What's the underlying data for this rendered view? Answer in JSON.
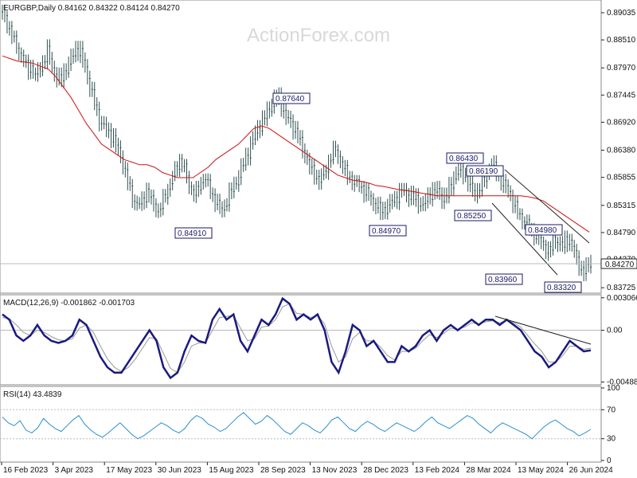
{
  "header": {
    "price_title": "EURGBP,Daily  0.84162 0.84322 0.84124 0.84270",
    "watermark": "ActionForex.com",
    "macd_title": "MACD(12,26,9) -0.001862 -0.001703",
    "rsi_title": "RSI(14) 43.4839"
  },
  "colors": {
    "candles": "#2f4f4f",
    "ma": "#cc1111",
    "macd_main": "#1a1a80",
    "macd_signal": "#999999",
    "rsi": "#2a8fd0",
    "trendline": "#222222",
    "label_border": "#1a1a66"
  },
  "chart_data": [
    {
      "type": "line",
      "title": "EURGBP,Daily",
      "ylim": [
        0.8365,
        0.8925
      ],
      "yticks": [
        "0.89035",
        "0.88510",
        "0.87970",
        "0.87445",
        "0.86920",
        "0.86380",
        "0.85855",
        "0.85315",
        "0.84790",
        "0.84270",
        "0.83725"
      ],
      "xticks": [
        "16 Feb 2023",
        "3 Apr 2023",
        "17 May 2023",
        "30 Jun 2023",
        "15 Aug 2023",
        "28 Sep 2023",
        "13 Nov 2023",
        "28 Dec 2023",
        "13 Feb 2024",
        "28 Mar 2024",
        "13 May 2024",
        "26 Jun 2024"
      ],
      "current_price": "0.84270",
      "series": [
        {
          "kind": "close",
          "values": [
            0.8905,
            0.8885,
            0.887,
            0.8845,
            0.883,
            0.8815,
            0.8795,
            0.88,
            0.878,
            0.8795,
            0.881,
            0.883,
            0.88,
            0.878,
            0.877,
            0.879,
            0.88,
            0.882,
            0.8835,
            0.8825,
            0.88,
            0.877,
            0.874,
            0.871,
            0.869,
            0.868,
            0.867,
            0.866,
            0.864,
            0.862,
            0.859,
            0.856,
            0.854,
            0.853,
            0.854,
            0.856,
            0.8545,
            0.853,
            0.852,
            0.854,
            0.856,
            0.858,
            0.86,
            0.862,
            0.861,
            0.858,
            0.856,
            0.8555,
            0.857,
            0.859,
            0.857,
            0.855,
            0.854,
            0.852,
            0.853,
            0.855,
            0.8565,
            0.858,
            0.86,
            0.862,
            0.864,
            0.866,
            0.868,
            0.869,
            0.8705,
            0.872,
            0.8735,
            0.874,
            0.872,
            0.87,
            0.869,
            0.868,
            0.866,
            0.864,
            0.862,
            0.86,
            0.859,
            0.858,
            0.859,
            0.861,
            0.863,
            0.864,
            0.862,
            0.86,
            0.859,
            0.858,
            0.8575,
            0.857,
            0.856,
            0.855,
            0.854,
            0.853,
            0.852,
            0.8525,
            0.8535,
            0.854,
            0.855,
            0.856,
            0.8555,
            0.855,
            0.8545,
            0.854,
            0.853,
            0.854,
            0.8555,
            0.856,
            0.8555,
            0.8545,
            0.855,
            0.857,
            0.859,
            0.86,
            0.8595,
            0.858,
            0.856,
            0.8555,
            0.8565,
            0.858,
            0.86,
            0.861,
            0.86,
            0.858,
            0.857,
            0.856,
            0.854,
            0.852,
            0.851,
            0.85,
            0.849,
            0.848,
            0.847,
            0.846,
            0.845,
            0.844,
            0.847,
            0.846,
            0.845,
            0.847,
            0.846,
            0.844,
            0.842,
            0.84,
            0.841,
            0.8427
          ]
        },
        {
          "name": "MA",
          "values": [
            0.882,
            0.8815,
            0.881,
            0.8808,
            0.8806,
            0.88,
            0.8795,
            0.878,
            0.876,
            0.874,
            0.8715,
            0.869,
            0.867,
            0.865,
            0.864,
            0.863,
            0.862,
            0.8615,
            0.861,
            0.861,
            0.8605,
            0.8595,
            0.859,
            0.8585,
            0.8585,
            0.8585,
            0.8595,
            0.8605,
            0.862,
            0.863,
            0.864,
            0.865,
            0.8665,
            0.868,
            0.8685,
            0.868,
            0.867,
            0.866,
            0.865,
            0.864,
            0.863,
            0.862,
            0.861,
            0.86,
            0.859,
            0.8585,
            0.858,
            0.8578,
            0.8575,
            0.857,
            0.8568,
            0.8565,
            0.8562,
            0.856,
            0.8558,
            0.8555,
            0.8553,
            0.855,
            0.855,
            0.855,
            0.855,
            0.855,
            0.855,
            0.855,
            0.855,
            0.855,
            0.855,
            0.855,
            0.855,
            0.8548,
            0.8545,
            0.854,
            0.853,
            0.852,
            0.851,
            0.85,
            0.849,
            0.848
          ]
        }
      ],
      "annotations": [
        "0.84910",
        "0.87640",
        "0.84970",
        "0.86430",
        "0.86190",
        "0.85250",
        "0.84980",
        "0.83960",
        "0.83320"
      ]
    },
    {
      "type": "line",
      "title": "MACD(12,26,9)",
      "ylim": [
        -0.005,
        0.0032
      ],
      "yticks": [
        "0.003066",
        "0.00",
        "-0.004888"
      ],
      "series": [
        {
          "name": "MACD",
          "values": [
            0.0015,
            0.001,
            -0.0005,
            -0.001,
            -0.0005,
            0.0005,
            -0.0005,
            -0.001,
            -0.0012,
            -0.001,
            -0.0005,
            0.001,
            0.0005,
            -0.001,
            -0.0025,
            -0.0035,
            -0.004,
            -0.004,
            -0.003,
            -0.002,
            -0.001,
            0.0,
            -0.001,
            -0.0035,
            -0.0045,
            -0.004,
            -0.002,
            -0.0005,
            -0.001,
            -0.0012,
            0.001,
            0.002,
            0.001,
            0.0015,
            -0.001,
            -0.002,
            -0.0005,
            0.001,
            0.0005,
            0.0015,
            0.003,
            0.0025,
            0.001,
            0.0015,
            0.001,
            0.0015,
            0.0,
            -0.003,
            -0.004,
            -0.002,
            0.0005,
            0.0,
            -0.0015,
            -0.001,
            -0.002,
            -0.003,
            -0.003,
            -0.0015,
            -0.002,
            -0.0015,
            -0.0005,
            0.0,
            -0.001,
            0.0,
            0.0005,
            0.0,
            0.0005,
            0.001,
            0.0005,
            0.001,
            0.001,
            0.0005,
            0.001,
            0.0005,
            0.0,
            -0.001,
            -0.002,
            -0.0025,
            -0.0035,
            -0.003,
            -0.002,
            -0.001,
            -0.0015,
            -0.002,
            -0.0019
          ]
        },
        {
          "name": "Signal",
          "values": [
            0.0012,
            0.0011,
            0.0005,
            -0.0002,
            -0.0005,
            0.0,
            -0.0002,
            -0.0006,
            -0.0009,
            -0.001,
            -0.0008,
            0.0002,
            0.0005,
            -0.0002,
            -0.0015,
            -0.0027,
            -0.0035,
            -0.0039,
            -0.0035,
            -0.0027,
            -0.0017,
            -0.0007,
            -0.0008,
            -0.0022,
            -0.0036,
            -0.004,
            -0.003,
            -0.0015,
            -0.0012,
            -0.0012,
            0.0,
            0.0012,
            0.0013,
            0.0014,
            0.0002,
            -0.001,
            -0.0008,
            0.0003,
            0.0004,
            0.001,
            0.0022,
            0.0025,
            0.0016,
            0.0015,
            0.0012,
            0.0014,
            0.0006,
            -0.0015,
            -0.003,
            -0.0025,
            -0.0008,
            -0.0002,
            -0.001,
            -0.001,
            -0.0016,
            -0.0024,
            -0.0028,
            -0.002,
            -0.002,
            -0.0017,
            -0.001,
            -0.0004,
            -0.0007,
            -0.0003,
            0.0002,
            0.0001,
            0.0003,
            0.0007,
            0.0006,
            0.0008,
            0.0009,
            0.0007,
            0.0009,
            0.0007,
            0.0003,
            -0.0005,
            -0.0013,
            -0.002,
            -0.003,
            -0.003,
            -0.0024,
            -0.0015,
            -0.0015,
            -0.0018,
            -0.0017
          ]
        }
      ]
    },
    {
      "type": "line",
      "title": "RSI(14)",
      "ylim": [
        0,
        100
      ],
      "yticks": [
        "100",
        "70",
        "30",
        "0"
      ],
      "series": [
        {
          "name": "RSI",
          "values": [
            60,
            52,
            48,
            55,
            42,
            38,
            45,
            58,
            50,
            44,
            40,
            48,
            56,
            62,
            50,
            42,
            36,
            32,
            38,
            45,
            52,
            44,
            36,
            30,
            34,
            40,
            46,
            52,
            48,
            42,
            38,
            44,
            55,
            62,
            58,
            50,
            46,
            40,
            44,
            52,
            60,
            66,
            58,
            50,
            54,
            62,
            56,
            48,
            40,
            36,
            44,
            52,
            48,
            42,
            38,
            46,
            56,
            60,
            52,
            44,
            40,
            48,
            54,
            50,
            44,
            40,
            46,
            52,
            48,
            44,
            40,
            46,
            54,
            60,
            52,
            48,
            44,
            50,
            56,
            62,
            58,
            50,
            44,
            38,
            46,
            52,
            48,
            44,
            40,
            36,
            30,
            38,
            46,
            52,
            56,
            50,
            44,
            40,
            34,
            38,
            43
          ]
        }
      ]
    }
  ]
}
